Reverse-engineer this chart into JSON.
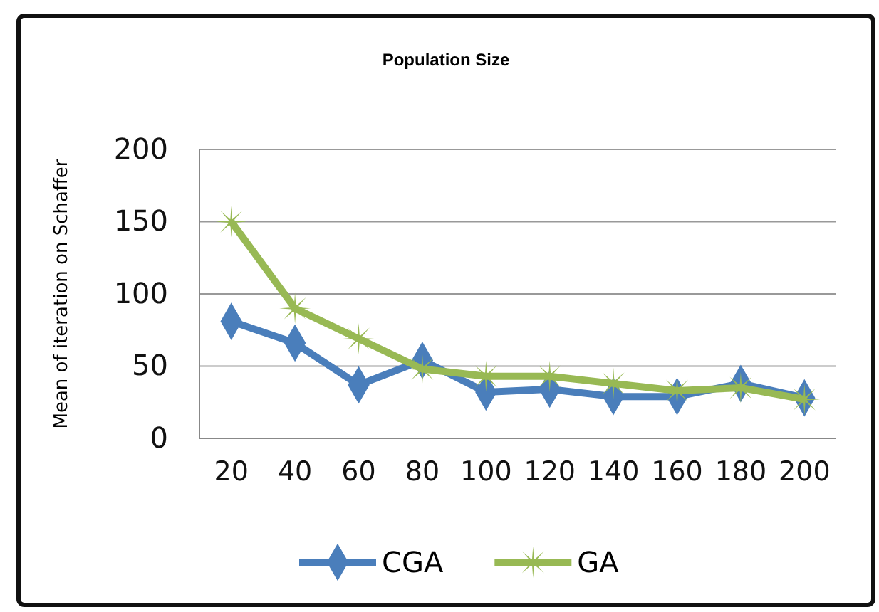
{
  "chart_data": {
    "type": "line",
    "title": "Population Size",
    "ylabel": "Mean of iteration on Schaffer",
    "categories": [
      "20",
      "40",
      "60",
      "80",
      "100",
      "120",
      "140",
      "160",
      "180",
      "200"
    ],
    "series": [
      {
        "name": "CGA",
        "color": "#4a7ebb",
        "marker": "diamond",
        "values": [
          81,
          66,
          37,
          54,
          32,
          34,
          29,
          29,
          38,
          28
        ]
      },
      {
        "name": "GA",
        "color": "#98b954",
        "marker": "cross",
        "values": [
          150,
          90,
          69,
          48,
          43,
          43,
          38,
          33,
          35,
          27
        ]
      }
    ],
    "ylim": [
      0,
      200
    ],
    "yticks": [
      0,
      50,
      100,
      150,
      200
    ],
    "grid": "y",
    "legend": "bottom",
    "line_style": "solid"
  }
}
